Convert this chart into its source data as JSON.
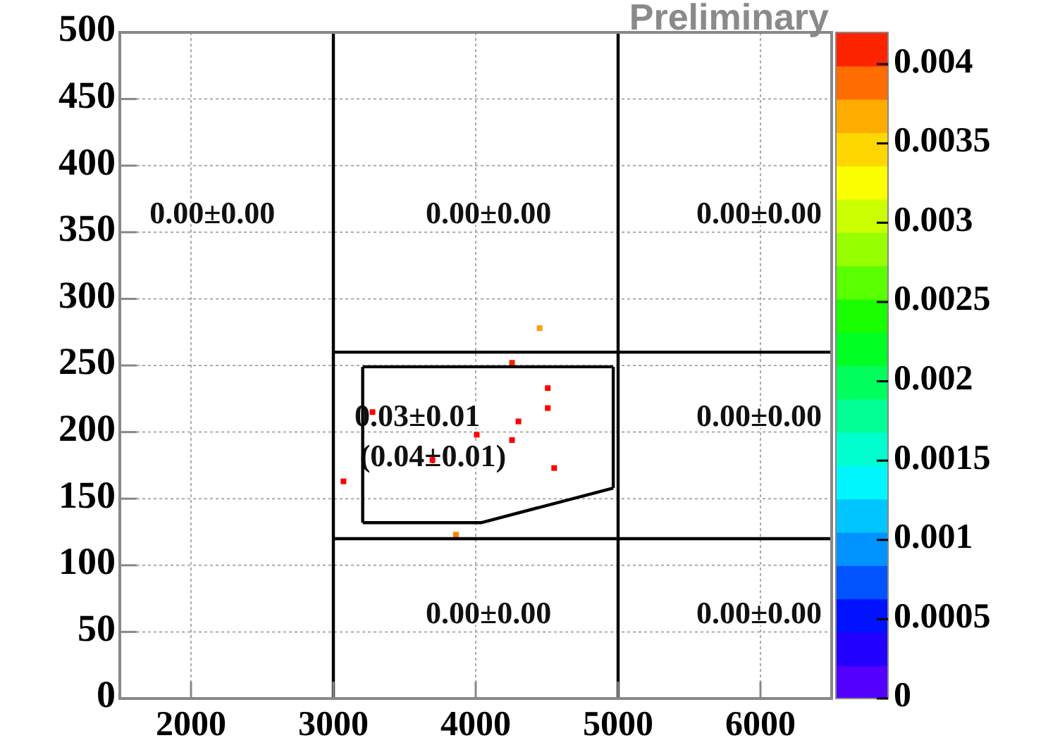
{
  "chart_data": {
    "type": "scatter",
    "grid": true,
    "xlim": [
      1500,
      6500
    ],
    "xticks": [
      2000,
      3000,
      4000,
      5000,
      6000
    ],
    "ylim": [
      0,
      500
    ],
    "yticks": [
      0,
      50,
      100,
      150,
      200,
      250,
      300,
      350,
      400,
      450,
      500
    ],
    "clim": [
      0,
      0.0042
    ],
    "cticks": [
      0,
      0.0005,
      0.001,
      0.0015,
      0.002,
      0.0025,
      0.003,
      0.0035,
      0.004
    ],
    "series": [
      {
        "marker": "square",
        "x": [
          4449,
          4255,
          4506,
          4506,
          4300,
          4007,
          4255,
          4551,
          3071,
          3861,
          3275,
          3696
        ],
        "values": [
          278,
          252,
          233,
          218,
          208,
          198,
          194,
          173,
          163,
          123,
          215,
          179
        ],
        "colors": [
          "#ffa000",
          "#ff2000",
          "#ff0000",
          "#ff0000",
          "#ff0000",
          "#ff0000",
          "#ff0000",
          "#ff0000",
          "#ff0000",
          "#ff8000",
          "#ff0000",
          "#ff0000"
        ]
      },
      {
        "type": "line",
        "marker": "none",
        "color": "#000000",
        "x": [
          3000,
          3000
        ],
        "values": [
          0,
          500
        ]
      },
      {
        "type": "line",
        "marker": "none",
        "color": "#000000",
        "x": [
          5000,
          5000
        ],
        "values": [
          0,
          500
        ]
      },
      {
        "type": "line",
        "marker": "none",
        "color": "#000000",
        "x": [
          3000,
          6500
        ],
        "values": [
          260,
          260
        ]
      },
      {
        "type": "line",
        "marker": "none",
        "color": "#000000",
        "x": [
          3000,
          6500
        ],
        "values": [
          120,
          120
        ]
      },
      {
        "type": "line",
        "marker": "none",
        "color": "#000000",
        "x": [
          3206,
          4966
        ],
        "values": [
          249,
          249
        ]
      },
      {
        "type": "line",
        "marker": "none",
        "color": "#000000",
        "x": [
          4966,
          4966
        ],
        "values": [
          249,
          158
        ]
      },
      {
        "type": "line",
        "marker": "none",
        "color": "#000000",
        "x": [
          3206,
          4037,
          4966
        ],
        "values": [
          132,
          132,
          158
        ]
      },
      {
        "type": "line",
        "marker": "none",
        "color": "#000000",
        "x": [
          3206,
          3206
        ],
        "values": [
          132,
          249
        ]
      }
    ],
    "annotations": [
      "Preliminary",
      "0.00±0.00",
      "0.00±0.00",
      "0.00±0.00",
      "0.03±0.01",
      "(0.04±0.01)",
      "0.00±0.00",
      "0.00±0.00",
      "0.00±0.00"
    ]
  }
}
